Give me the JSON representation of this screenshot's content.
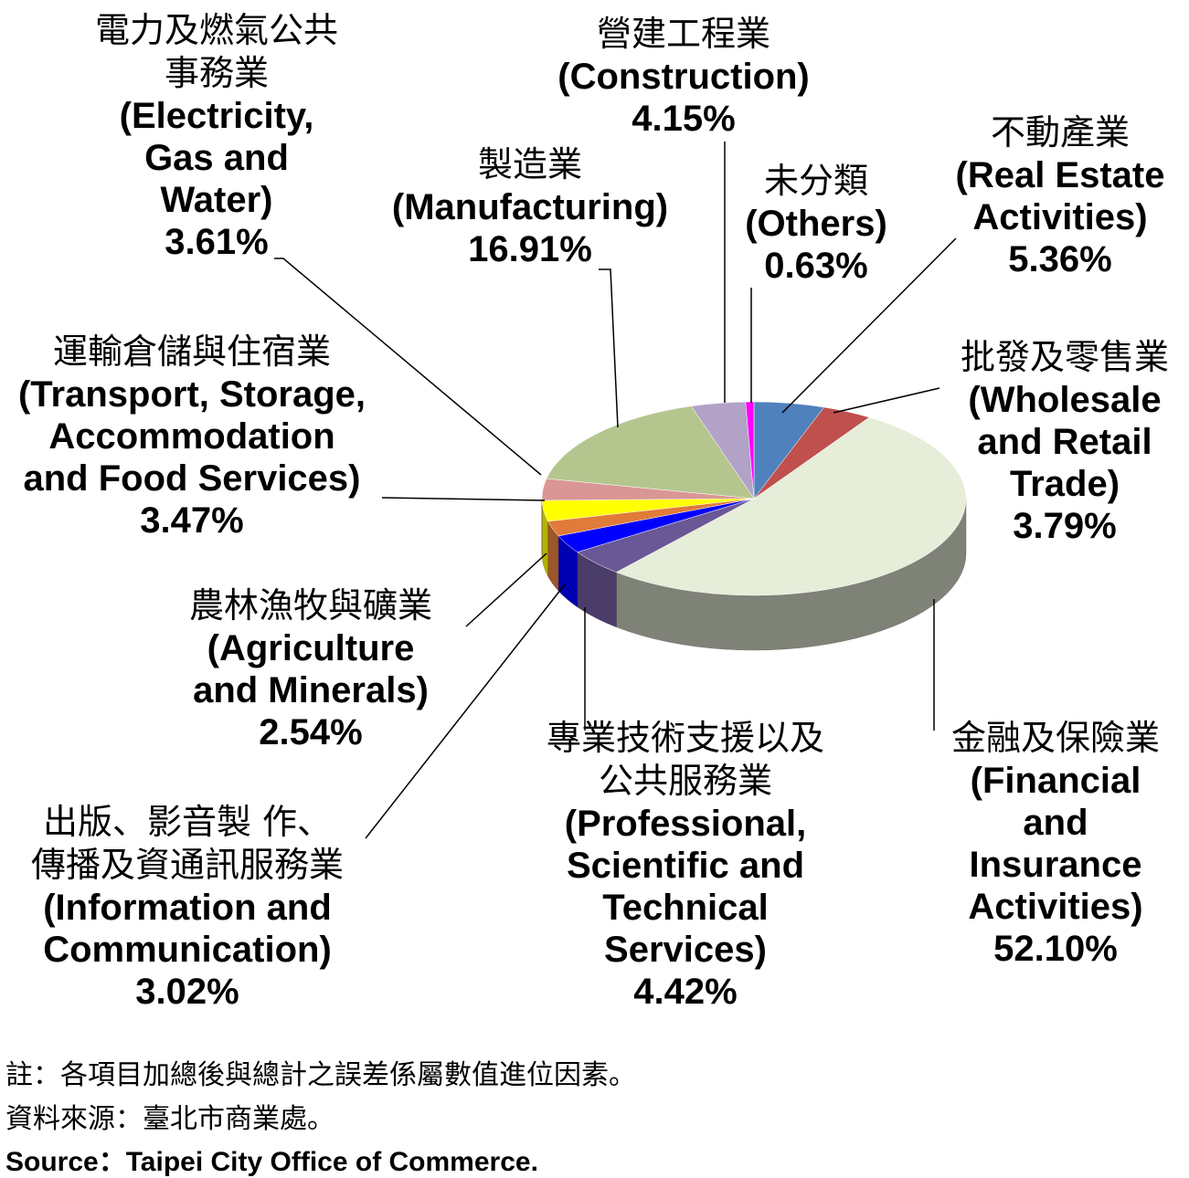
{
  "chart_data": {
    "type": "pie",
    "categories": [
      "不動產業",
      "批發及零售業",
      "金融及保險業",
      "專業技術支援以及\n公共服務業",
      "出版、影音製 作、\n傳播及資通訊服務業",
      "農林漁牧與礦業",
      "運輸倉儲與住宿業",
      "電力及燃氣公共\n事務業",
      "製造業",
      "營建工程業",
      "未分類"
    ],
    "categories_en": [
      "(Real Estate\nActivities)",
      "(Wholesale\nand Retail\nTrade)",
      "(Financial\nand\nInsurance\nActivities)",
      "(Professional,\nScientific and\nTechnical\nServices)",
      "(Information and\nCommunication)",
      "(Agriculture\nand Minerals)",
      "(Transport, Storage,\nAccommodation\nand Food Services)",
      "(Electricity,\nGas and\nWater)",
      "(Manufacturing)",
      "(Construction)",
      "(Others)"
    ],
    "values": [
      5.36,
      3.79,
      52.1,
      4.42,
      3.02,
      2.54,
      3.47,
      3.61,
      16.91,
      4.15,
      0.63
    ],
    "value_labels": [
      "5.36%",
      "3.79%",
      "52.10%",
      "4.42%",
      "3.02%",
      "2.54%",
      "3.47%",
      "3.61%",
      "16.91%",
      "4.15%",
      "0.63%"
    ],
    "colors": [
      "#4f81bd",
      "#c0504d",
      "#e6edd9",
      "#6a5796",
      "#0000ff",
      "#e07b39",
      "#ffff00",
      "#d99694",
      "#b4c68e",
      "#b3a2c7",
      "#ff00ff"
    ],
    "notes": [
      "註：各項目加總後與總計之誤差係屬數值進位因素。",
      "資料來源：臺北市商業處。",
      "Source：Taipei City Office of Commerce."
    ]
  }
}
